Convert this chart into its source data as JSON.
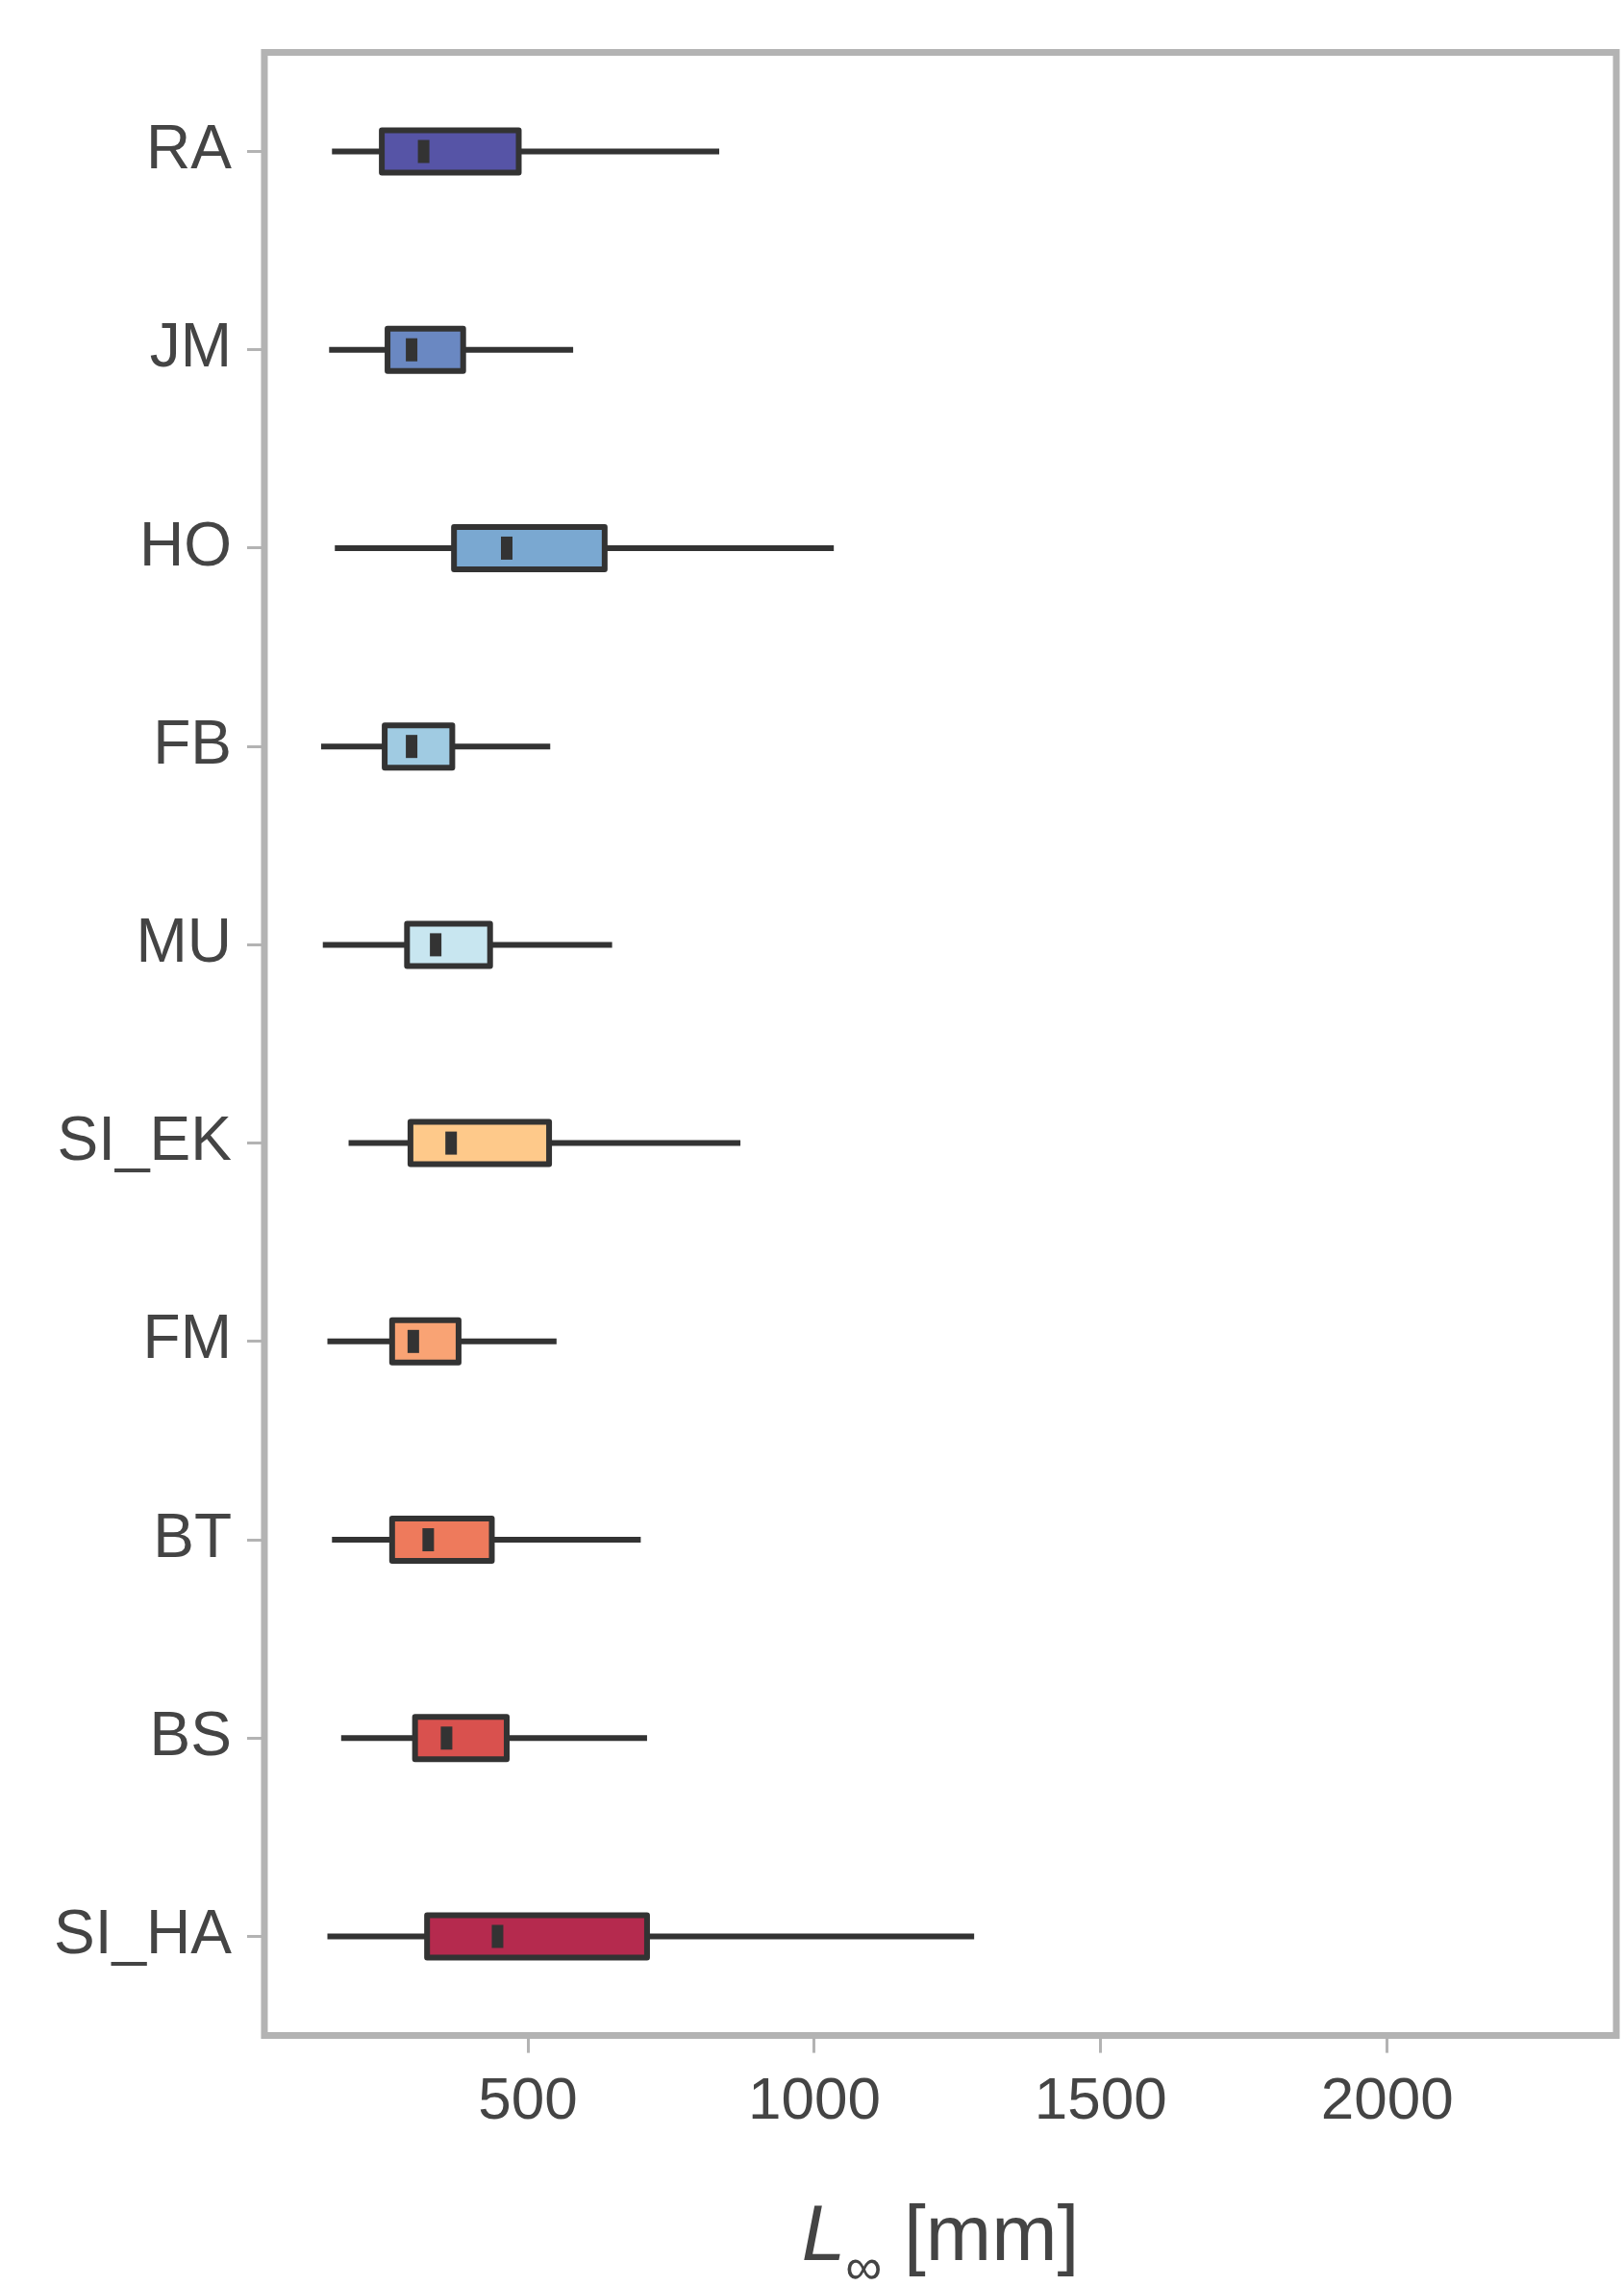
{
  "chart_data": {
    "type": "box",
    "orientation": "horizontal",
    "xlabel": "L$_{∞}$ [mm]",
    "categories": [
      "RA",
      "JM",
      "HO",
      "FB",
      "MU",
      "SI_EK",
      "FM",
      "BT",
      "BS",
      "SI_HA"
    ],
    "colors": [
      "#5654a6",
      "#6a88c2",
      "#7aa8d1",
      "#a0cbe2",
      "#c8e6f0",
      "#fec98a",
      "#f9a374",
      "#ee7a5c",
      "#d9514e",
      "#b52a4e"
    ],
    "boxes": [
      {
        "low": 158,
        "q1": 245,
        "median": 318,
        "q3": 484,
        "high": 834
      },
      {
        "low": 153,
        "q1": 255,
        "median": 297,
        "q3": 387,
        "high": 579
      },
      {
        "low": 163,
        "q1": 371,
        "median": 463,
        "q3": 634,
        "high": 1034
      },
      {
        "low": 139,
        "q1": 250,
        "median": 297,
        "q3": 368,
        "high": 539
      },
      {
        "low": 142,
        "q1": 289,
        "median": 339,
        "q3": 434,
        "high": 647
      },
      {
        "low": 187,
        "q1": 295,
        "median": 366,
        "q3": 537,
        "high": 871
      },
      {
        "low": 150,
        "q1": 263,
        "median": 300,
        "q3": 379,
        "high": 550
      },
      {
        "low": 158,
        "q1": 263,
        "median": 326,
        "q3": 437,
        "high": 697
      },
      {
        "low": 174,
        "q1": 303,
        "median": 358,
        "q3": 463,
        "high": 708
      },
      {
        "low": 150,
        "q1": 324,
        "median": 447,
        "q3": 708,
        "high": 1279
      }
    ],
    "xlim": [
      40,
      2400
    ],
    "xticks": [
      500,
      1000,
      1500,
      2000
    ],
    "grid": false
  }
}
